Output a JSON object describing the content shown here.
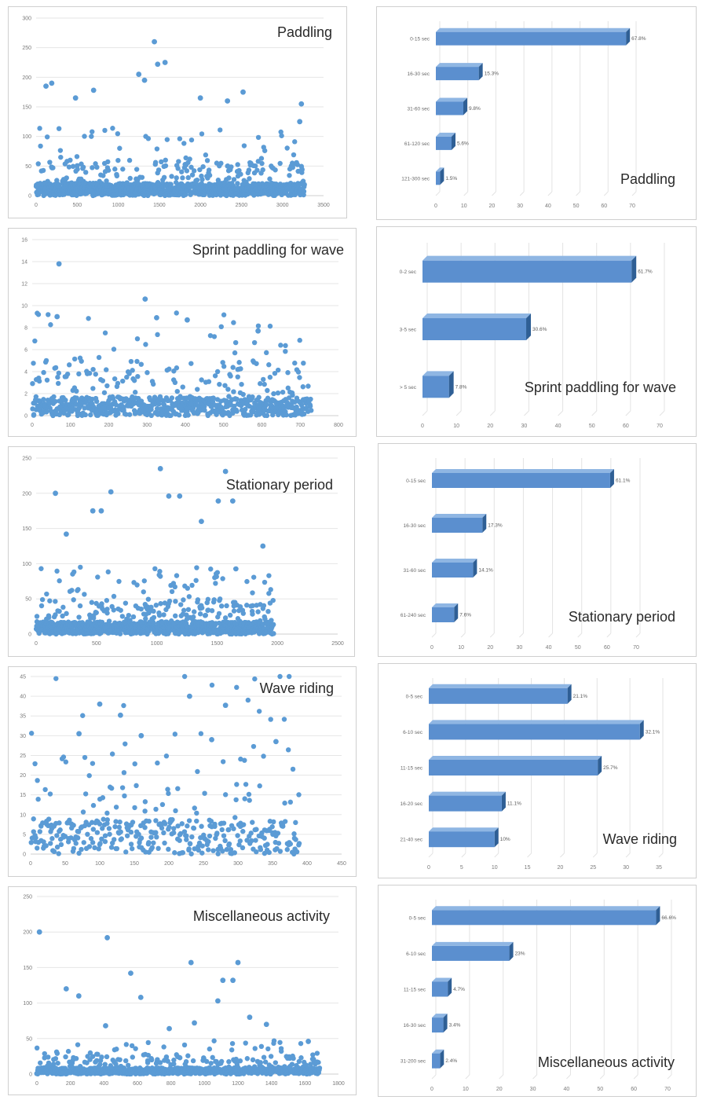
{
  "chart_data": [
    {
      "type": "scatter",
      "title": "Paddling",
      "xlim": [
        0,
        3500
      ],
      "ylim": [
        0,
        300
      ],
      "xticks": [
        0,
        500,
        1000,
        1500,
        2000,
        2500,
        3000,
        3500
      ],
      "yticks": [
        0,
        50,
        100,
        150,
        200,
        250,
        300
      ],
      "series": [
        {
          "color": "#5b9bd5",
          "n_points": 3270,
          "x_range": [
            0,
            3270
          ],
          "typical_y_max": 60,
          "notable_points": [
            [
              190,
              190
            ],
            [
              120,
              185
            ],
            [
              480,
              165
            ],
            [
              700,
              178
            ],
            [
              1250,
              205
            ],
            [
              1440,
              260
            ],
            [
              1480,
              222
            ],
            [
              1570,
              225
            ],
            [
              1320,
              195
            ],
            [
              2000,
              165
            ],
            [
              2330,
              160
            ],
            [
              2520,
              175
            ],
            [
              3230,
              155
            ],
            [
              3210,
              125
            ]
          ]
        }
      ]
    },
    {
      "type": "bar",
      "orientation": "horizontal",
      "title": "Paddling",
      "categories": [
        "0-15 sec",
        "16-30 sec",
        "31-60 sec",
        "61-120 sec",
        "121-300 sec"
      ],
      "values": [
        67.8,
        15.3,
        9.8,
        5.6,
        1.5
      ],
      "value_labels": [
        "67.8%",
        "15.3%",
        "9.8%",
        "5.6%",
        "1.5%"
      ],
      "xlim": [
        0,
        70
      ],
      "xticks": [
        0,
        10,
        20,
        30,
        40,
        50,
        60,
        70
      ]
    },
    {
      "type": "scatter",
      "title": "Sprint paddling for wave",
      "xlim": [
        0,
        800
      ],
      "ylim": [
        0,
        16
      ],
      "xticks": [
        0,
        100,
        200,
        300,
        400,
        500,
        600,
        700,
        800
      ],
      "yticks": [
        0,
        2,
        4,
        6,
        8,
        10,
        12,
        14,
        16
      ],
      "series": [
        {
          "color": "#5b9bd5",
          "n_points": 720,
          "x_range": [
            0,
            730
          ],
          "typical_y_max": 5,
          "notable_points": [
            [
              70,
              13.8
            ],
            [
              65,
              9
            ],
            [
              295,
              10.6
            ],
            [
              325,
              8.9
            ],
            [
              405,
              8.7
            ],
            [
              590,
              7.7
            ],
            [
              695,
              0.2
            ]
          ]
        }
      ]
    },
    {
      "type": "bar",
      "orientation": "horizontal",
      "title": "Sprint paddling for wave",
      "categories": [
        "0-2 sec",
        "3-5 sec",
        "> 5 sec"
      ],
      "values": [
        61.7,
        30.6,
        7.8
      ],
      "value_labels": [
        "61.7%",
        "30.6%",
        "7.8%"
      ],
      "xlim": [
        0,
        70
      ],
      "xticks": [
        0,
        10,
        20,
        30,
        40,
        50,
        60,
        70
      ]
    },
    {
      "type": "scatter",
      "title": "Stationary period",
      "xlim": [
        0,
        2500
      ],
      "ylim": [
        0,
        250
      ],
      "xticks": [
        0,
        500,
        1000,
        1500,
        2000,
        2500
      ],
      "yticks": [
        0,
        50,
        100,
        150,
        200,
        250
      ],
      "series": [
        {
          "color": "#5b9bd5",
          "n_points": 1970,
          "x_range": [
            0,
            1970
          ],
          "typical_y_max": 50,
          "notable_points": [
            [
              160,
              200
            ],
            [
              620,
              202
            ],
            [
              1030,
              235
            ],
            [
              1570,
              231
            ],
            [
              1100,
              196
            ],
            [
              1190,
              196
            ],
            [
              1630,
              189
            ],
            [
              1510,
              189
            ],
            [
              470,
              175
            ],
            [
              540,
              175
            ],
            [
              250,
              142
            ],
            [
              1370,
              160
            ],
            [
              1880,
              125
            ]
          ]
        }
      ]
    },
    {
      "type": "bar",
      "orientation": "horizontal",
      "title": "Stationary period",
      "categories": [
        "0-15 sec",
        "16-30 sec",
        "31-60 sec",
        "61-240 sec"
      ],
      "values": [
        61.1,
        17.3,
        14.1,
        7.6
      ],
      "value_labels": [
        "61.1%",
        "17.3%",
        "14.1%",
        "7.6%"
      ],
      "xlim": [
        0,
        70
      ],
      "xticks": [
        0,
        10,
        20,
        30,
        40,
        50,
        60,
        70
      ]
    },
    {
      "type": "scatter",
      "title": "Wave riding",
      "xlim": [
        0,
        450
      ],
      "ylim": [
        0,
        45
      ],
      "xticks": [
        0,
        50,
        100,
        150,
        200,
        250,
        300,
        350,
        400,
        450
      ],
      "yticks": [
        0,
        5,
        10,
        15,
        20,
        25,
        30,
        35,
        40,
        45
      ],
      "series": [
        {
          "color": "#5b9bd5",
          "n_points": 390,
          "x_range": [
            0,
            390
          ],
          "typical_y_max": 25,
          "notable_points": [
            [
              100,
              38
            ],
            [
              130,
              35.2
            ],
            [
              230,
              40
            ],
            [
              282,
              37.7
            ],
            [
              70,
              30.5
            ],
            [
              160,
              30
            ],
            [
              262,
              29
            ],
            [
              355,
              28.5
            ]
          ]
        }
      ]
    },
    {
      "type": "bar",
      "orientation": "horizontal",
      "title": "Wave riding",
      "categories": [
        "0-5 sec",
        "6-10 sec",
        "11-15 sec",
        "16-20 sec",
        "21-40 sec"
      ],
      "values": [
        21.1,
        32.1,
        25.7,
        11.1,
        10
      ],
      "value_labels": [
        "21.1%",
        "32.1%",
        "25.7%",
        "11.1%",
        "10%"
      ],
      "xlim": [
        0,
        35
      ],
      "xticks": [
        0,
        5,
        10,
        15,
        20,
        25,
        30,
        35
      ]
    },
    {
      "type": "scatter",
      "title": "Miscellaneous activity",
      "xlim": [
        0,
        1800
      ],
      "ylim": [
        0,
        250
      ],
      "xticks": [
        0,
        200,
        400,
        600,
        800,
        1000,
        1200,
        1400,
        1600,
        1800
      ],
      "yticks": [
        0,
        50,
        100,
        150,
        200,
        250
      ],
      "series": [
        {
          "color": "#5b9bd5",
          "n_points": 1690,
          "x_range": [
            0,
            1690
          ],
          "typical_y_max": 25,
          "notable_points": [
            [
              15,
              200
            ],
            [
              420,
              192
            ],
            [
              560,
              142
            ],
            [
              175,
              120
            ],
            [
              250,
              110
            ],
            [
              620,
              108
            ],
            [
              920,
              157
            ],
            [
              1200,
              157
            ],
            [
              1110,
              132
            ],
            [
              1170,
              132
            ],
            [
              1080,
              103
            ],
            [
              1270,
              80
            ],
            [
              1370,
              70
            ],
            [
              940,
              72
            ],
            [
              1620,
              46
            ],
            [
              410,
              68
            ],
            [
              790,
              64
            ]
          ]
        }
      ]
    },
    {
      "type": "bar",
      "orientation": "horizontal",
      "title": "Miscellaneous activity",
      "categories": [
        "0-5 sec",
        "6-10 sec",
        "11-15 sec",
        "16-30 sec",
        "31-200 sec"
      ],
      "values": [
        66.6,
        23,
        4.7,
        3.4,
        2.4
      ],
      "value_labels": [
        "66.6%",
        "23%",
        "4.7%",
        "3.4%",
        "2.4%"
      ],
      "xlim": [
        0,
        70
      ],
      "xticks": [
        0,
        10,
        20,
        30,
        40,
        50,
        60,
        70
      ]
    }
  ]
}
